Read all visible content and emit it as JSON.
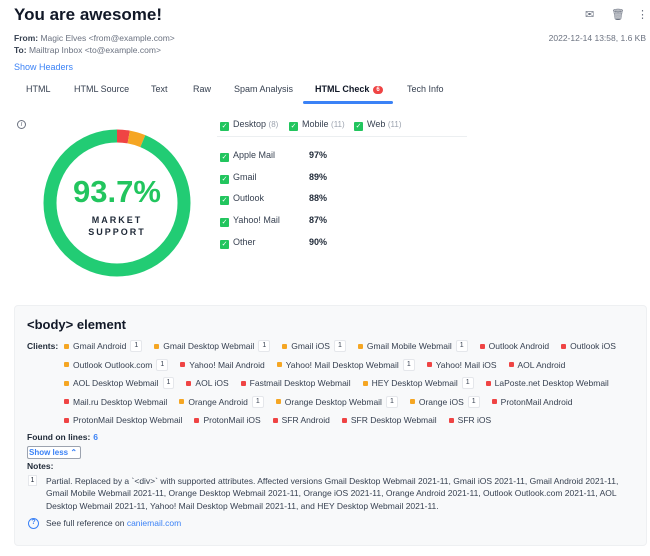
{
  "header": {
    "title": "You are awesome!",
    "from_label": "From:",
    "from": "Magic Elves <from@example.com>",
    "to_label": "To:",
    "to": "Mailtrap Inbox <to@example.com>",
    "date_size": "2022-12-14 13:58, 1.6 KB",
    "show_headers": "Show Headers",
    "icons": [
      "forward-icon",
      "trash-icon",
      "more-vertical-icon"
    ]
  },
  "tabs": [
    {
      "label": "HTML"
    },
    {
      "label": "HTML Source"
    },
    {
      "label": "Text"
    },
    {
      "label": "Raw"
    },
    {
      "label": "Spam Analysis"
    },
    {
      "label": "HTML Check",
      "badge": "6",
      "active": true
    },
    {
      "label": "Tech Info"
    }
  ],
  "market": {
    "percent": "93.7%",
    "label": "MARKET SUPPORT",
    "segments": {
      "supported": 93.7,
      "unsupported": 2.8,
      "partial": 3.5
    },
    "colors": {
      "supported": "#22cc74",
      "unsupported": "#ef4444",
      "partial": "#f5a623"
    }
  },
  "filters": [
    {
      "label": "Desktop",
      "count": "(8)"
    },
    {
      "label": "Mobile",
      "count": "(11)"
    },
    {
      "label": "Web",
      "count": "(11)"
    }
  ],
  "clients_support": [
    {
      "name": "Apple Mail",
      "pct": "97%"
    },
    {
      "name": "Gmail",
      "pct": "89%"
    },
    {
      "name": "Outlook",
      "pct": "88%"
    },
    {
      "name": "Yahoo! Mail",
      "pct": "87%"
    },
    {
      "name": "Other",
      "pct": "90%"
    }
  ],
  "element": {
    "title": "<body> element",
    "clients_label": "Clients:",
    "clients": [
      {
        "name": "Gmail Android",
        "status": "partial",
        "note": "1"
      },
      {
        "name": "Gmail Desktop Webmail",
        "status": "partial",
        "note": "1"
      },
      {
        "name": "Gmail iOS",
        "status": "partial",
        "note": "1"
      },
      {
        "name": "Gmail Mobile Webmail",
        "status": "partial",
        "note": "1"
      },
      {
        "name": "Outlook Android",
        "status": "unsupported"
      },
      {
        "name": "Outlook iOS",
        "status": "unsupported"
      },
      {
        "name": "Outlook Outlook.com",
        "status": "partial",
        "note": "1"
      },
      {
        "name": "Yahoo! Mail Android",
        "status": "unsupported"
      },
      {
        "name": "Yahoo! Mail Desktop Webmail",
        "status": "partial",
        "note": "1"
      },
      {
        "name": "Yahoo! Mail iOS",
        "status": "unsupported"
      },
      {
        "name": "AOL Android",
        "status": "unsupported"
      },
      {
        "name": "AOL Desktop Webmail",
        "status": "partial",
        "note": "1"
      },
      {
        "name": "AOL iOS",
        "status": "unsupported"
      },
      {
        "name": "Fastmail Desktop Webmail",
        "status": "unsupported"
      },
      {
        "name": "HEY Desktop Webmail",
        "status": "partial",
        "note": "1"
      },
      {
        "name": "LaPoste.net Desktop Webmail",
        "status": "unsupported"
      },
      {
        "name": "Mail.ru Desktop Webmail",
        "status": "unsupported"
      },
      {
        "name": "Orange Android",
        "status": "partial",
        "note": "1"
      },
      {
        "name": "Orange Desktop Webmail",
        "status": "partial",
        "note": "1"
      },
      {
        "name": "Orange iOS",
        "status": "partial",
        "note": "1"
      },
      {
        "name": "ProtonMail Android",
        "status": "unsupported"
      },
      {
        "name": "ProtonMail Desktop Webmail",
        "status": "unsupported"
      },
      {
        "name": "ProtonMail iOS",
        "status": "unsupported"
      },
      {
        "name": "SFR Android",
        "status": "unsupported"
      },
      {
        "name": "SFR Desktop Webmail",
        "status": "unsupported"
      },
      {
        "name": "SFR iOS",
        "status": "unsupported"
      }
    ],
    "found_label": "Found on lines:",
    "found_lines": "6",
    "show_less": "Show less ⌃",
    "notes_label": "Notes:",
    "notes": [
      {
        "num": "1",
        "text": "Partial. Replaced by a `<div>` with supported attributes. Affected versions Gmail Desktop Webmail 2021-11, Gmail iOS 2021-11, Gmail Android 2021-11, Gmail Mobile Webmail 2021-11, Orange Desktop Webmail 2021-11, Orange iOS 2021-11, Orange Android 2021-11, Outlook Outlook.com 2021-11, AOL Desktop Webmail 2021-11, Yahoo! Mail Desktop Webmail 2021-11, and HEY Desktop Webmail 2021-11."
      }
    ],
    "reference_prefix": "See full reference on",
    "reference_link": "caniemail.com"
  }
}
